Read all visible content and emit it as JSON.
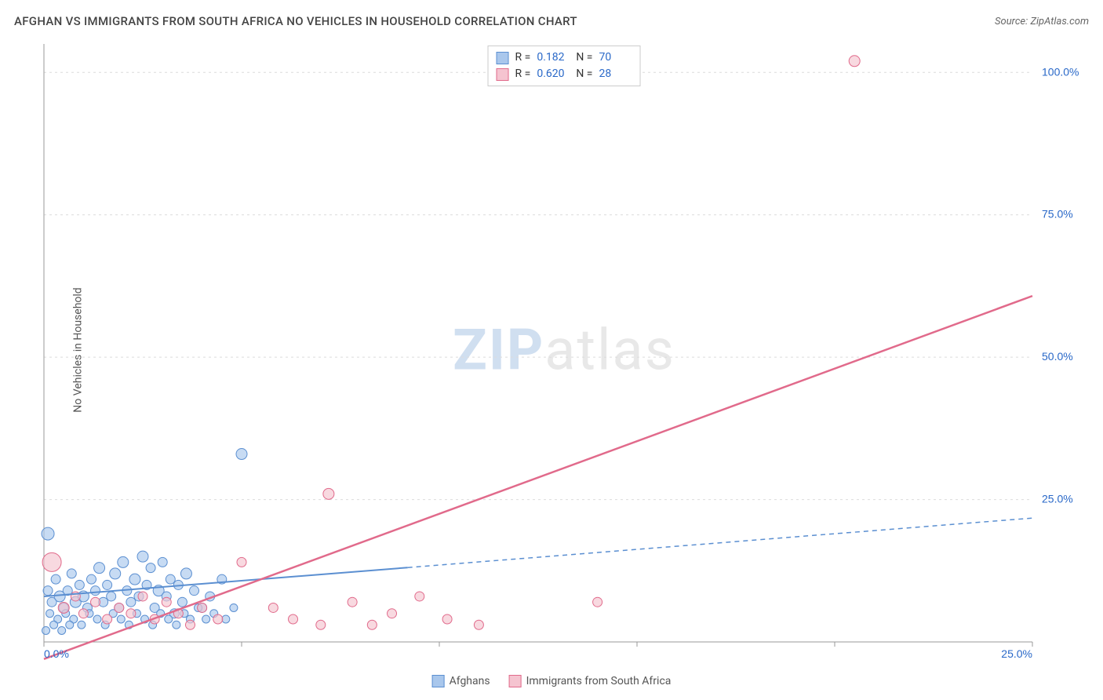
{
  "title": "AFGHAN VS IMMIGRANTS FROM SOUTH AFRICA NO VEHICLES IN HOUSEHOLD CORRELATION CHART",
  "source_prefix": "Source: ",
  "source_name": "ZipAtlas.com",
  "y_axis_label": "No Vehicles in Household",
  "watermark_a": "ZIP",
  "watermark_b": "atlas",
  "chart": {
    "type": "scatter",
    "xlim": [
      0,
      25
    ],
    "ylim": [
      0,
      105
    ],
    "x_ticks": [
      0,
      5,
      10,
      15,
      20,
      25
    ],
    "x_tick_labels": [
      "0.0%",
      "",
      "",
      "",
      "",
      "25.0%"
    ],
    "y_ticks": [
      25,
      50,
      75,
      100
    ],
    "y_tick_labels": [
      "25.0%",
      "50.0%",
      "75.0%",
      "100.0%"
    ],
    "background_color": "#ffffff",
    "grid_color": "#dcdcdc",
    "axis_color": "#999999",
    "tick_label_color": "#2968c8",
    "series": [
      {
        "name": "Afghans",
        "label": "Afghans",
        "fill": "#a9c7ec",
        "stroke": "#5b8fd1",
        "opacity": 0.65,
        "R": "0.182",
        "N": "70",
        "trend": {
          "y_intercept": 8.0,
          "slope": 0.55,
          "solid_until_x": 9.2,
          "dash": "6,5",
          "stroke_width": 2
        },
        "points": [
          {
            "x": 0.1,
            "y": 19,
            "r": 8
          },
          {
            "x": 0.1,
            "y": 9,
            "r": 6
          },
          {
            "x": 0.2,
            "y": 7,
            "r": 6
          },
          {
            "x": 0.3,
            "y": 11,
            "r": 6
          },
          {
            "x": 0.4,
            "y": 8,
            "r": 7
          },
          {
            "x": 0.5,
            "y": 6,
            "r": 6
          },
          {
            "x": 0.6,
            "y": 9,
            "r": 6
          },
          {
            "x": 0.7,
            "y": 12,
            "r": 6
          },
          {
            "x": 0.8,
            "y": 7,
            "r": 7
          },
          {
            "x": 0.9,
            "y": 10,
            "r": 6
          },
          {
            "x": 1.0,
            "y": 8,
            "r": 7
          },
          {
            "x": 1.1,
            "y": 6,
            "r": 6
          },
          {
            "x": 1.2,
            "y": 11,
            "r": 6
          },
          {
            "x": 1.3,
            "y": 9,
            "r": 6
          },
          {
            "x": 1.4,
            "y": 13,
            "r": 7
          },
          {
            "x": 1.5,
            "y": 7,
            "r": 6
          },
          {
            "x": 1.6,
            "y": 10,
            "r": 6
          },
          {
            "x": 1.7,
            "y": 8,
            "r": 6
          },
          {
            "x": 1.8,
            "y": 12,
            "r": 7
          },
          {
            "x": 1.9,
            "y": 6,
            "r": 6
          },
          {
            "x": 2.0,
            "y": 14,
            "r": 7
          },
          {
            "x": 2.1,
            "y": 9,
            "r": 6
          },
          {
            "x": 2.2,
            "y": 7,
            "r": 6
          },
          {
            "x": 2.3,
            "y": 11,
            "r": 7
          },
          {
            "x": 2.4,
            "y": 8,
            "r": 6
          },
          {
            "x": 2.5,
            "y": 15,
            "r": 7
          },
          {
            "x": 2.6,
            "y": 10,
            "r": 6
          },
          {
            "x": 2.7,
            "y": 13,
            "r": 6
          },
          {
            "x": 2.8,
            "y": 6,
            "r": 6
          },
          {
            "x": 2.9,
            "y": 9,
            "r": 7
          },
          {
            "x": 3.0,
            "y": 14,
            "r": 6
          },
          {
            "x": 3.1,
            "y": 8,
            "r": 6
          },
          {
            "x": 3.2,
            "y": 11,
            "r": 6
          },
          {
            "x": 3.3,
            "y": 5,
            "r": 6
          },
          {
            "x": 3.4,
            "y": 10,
            "r": 6
          },
          {
            "x": 3.5,
            "y": 7,
            "r": 6
          },
          {
            "x": 3.6,
            "y": 12,
            "r": 7
          },
          {
            "x": 3.8,
            "y": 9,
            "r": 6
          },
          {
            "x": 4.0,
            "y": 6,
            "r": 6
          },
          {
            "x": 4.2,
            "y": 8,
            "r": 6
          },
          {
            "x": 4.5,
            "y": 11,
            "r": 6
          },
          {
            "x": 5.0,
            "y": 33,
            "r": 7
          },
          {
            "x": 0.15,
            "y": 5,
            "r": 5
          },
          {
            "x": 0.35,
            "y": 4,
            "r": 5
          },
          {
            "x": 0.55,
            "y": 5,
            "r": 5
          },
          {
            "x": 0.75,
            "y": 4,
            "r": 5
          },
          {
            "x": 0.95,
            "y": 3,
            "r": 5
          },
          {
            "x": 1.15,
            "y": 5,
            "r": 5
          },
          {
            "x": 1.35,
            "y": 4,
            "r": 5
          },
          {
            "x": 1.55,
            "y": 3,
            "r": 5
          },
          {
            "x": 1.75,
            "y": 5,
            "r": 5
          },
          {
            "x": 1.95,
            "y": 4,
            "r": 5
          },
          {
            "x": 2.15,
            "y": 3,
            "r": 5
          },
          {
            "x": 2.35,
            "y": 5,
            "r": 5
          },
          {
            "x": 2.55,
            "y": 4,
            "r": 5
          },
          {
            "x": 2.75,
            "y": 3,
            "r": 5
          },
          {
            "x": 2.95,
            "y": 5,
            "r": 5
          },
          {
            "x": 3.15,
            "y": 4,
            "r": 5
          },
          {
            "x": 3.35,
            "y": 3,
            "r": 5
          },
          {
            "x": 3.55,
            "y": 5,
            "r": 5
          },
          {
            "x": 3.7,
            "y": 4,
            "r": 5
          },
          {
            "x": 3.9,
            "y": 6,
            "r": 5
          },
          {
            "x": 4.1,
            "y": 4,
            "r": 5
          },
          {
            "x": 4.3,
            "y": 5,
            "r": 5
          },
          {
            "x": 4.6,
            "y": 4,
            "r": 5
          },
          {
            "x": 4.8,
            "y": 6,
            "r": 5
          },
          {
            "x": 0.05,
            "y": 2,
            "r": 5
          },
          {
            "x": 0.25,
            "y": 3,
            "r": 5
          },
          {
            "x": 0.45,
            "y": 2,
            "r": 5
          },
          {
            "x": 0.65,
            "y": 3,
            "r": 5
          }
        ]
      },
      {
        "name": "Immigrants from South Africa",
        "label": "Immigrants from South Africa",
        "fill": "#f5c4d0",
        "stroke": "#e16a8b",
        "opacity": 0.65,
        "R": "0.620",
        "N": "28",
        "trend": {
          "y_intercept": -3.0,
          "slope": 2.55,
          "solid_until_x": 25,
          "dash": "",
          "stroke_width": 2.5
        },
        "points": [
          {
            "x": 0.2,
            "y": 14,
            "r": 12
          },
          {
            "x": 0.5,
            "y": 6,
            "r": 7
          },
          {
            "x": 0.8,
            "y": 8,
            "r": 6
          },
          {
            "x": 1.0,
            "y": 5,
            "r": 6
          },
          {
            "x": 1.3,
            "y": 7,
            "r": 6
          },
          {
            "x": 1.6,
            "y": 4,
            "r": 6
          },
          {
            "x": 1.9,
            "y": 6,
            "r": 6
          },
          {
            "x": 2.2,
            "y": 5,
            "r": 6
          },
          {
            "x": 2.5,
            "y": 8,
            "r": 6
          },
          {
            "x": 2.8,
            "y": 4,
            "r": 6
          },
          {
            "x": 3.1,
            "y": 7,
            "r": 6
          },
          {
            "x": 3.4,
            "y": 5,
            "r": 6
          },
          {
            "x": 3.7,
            "y": 3,
            "r": 6
          },
          {
            "x": 4.0,
            "y": 6,
            "r": 6
          },
          {
            "x": 4.4,
            "y": 4,
            "r": 6
          },
          {
            "x": 5.0,
            "y": 14,
            "r": 6
          },
          {
            "x": 5.8,
            "y": 6,
            "r": 6
          },
          {
            "x": 6.3,
            "y": 4,
            "r": 6
          },
          {
            "x": 7.0,
            "y": 3,
            "r": 6
          },
          {
            "x": 7.2,
            "y": 26,
            "r": 7
          },
          {
            "x": 7.8,
            "y": 7,
            "r": 6
          },
          {
            "x": 8.3,
            "y": 3,
            "r": 6
          },
          {
            "x": 8.8,
            "y": 5,
            "r": 6
          },
          {
            "x": 9.5,
            "y": 8,
            "r": 6
          },
          {
            "x": 10.2,
            "y": 4,
            "r": 6
          },
          {
            "x": 11.0,
            "y": 3,
            "r": 6
          },
          {
            "x": 14.0,
            "y": 7,
            "r": 6
          },
          {
            "x": 20.5,
            "y": 102,
            "r": 7
          }
        ]
      }
    ]
  },
  "legend": {
    "items": [
      {
        "label": "Afghans",
        "fill": "#a9c7ec",
        "stroke": "#5b8fd1"
      },
      {
        "label": "Immigrants from South Africa",
        "fill": "#f5c4d0",
        "stroke": "#e16a8b"
      }
    ]
  }
}
